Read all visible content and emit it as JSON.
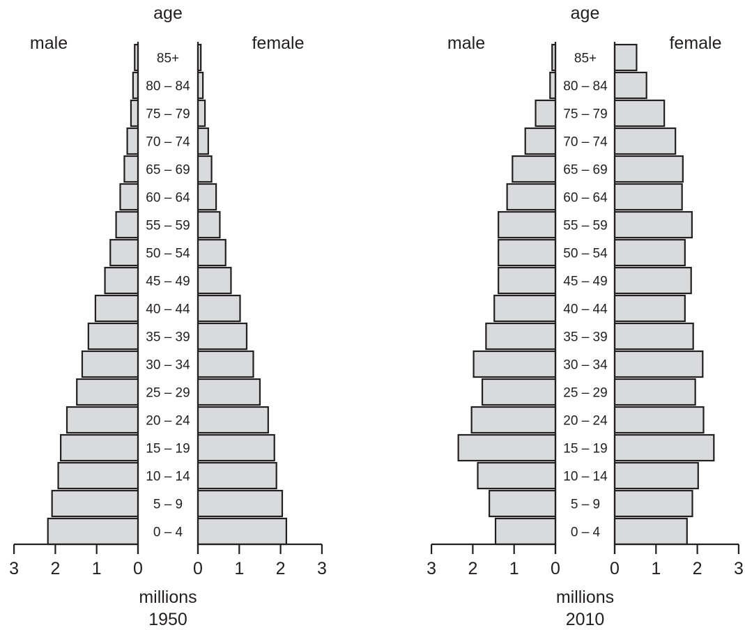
{
  "chart_data": [
    {
      "type": "bar",
      "title": "1950",
      "xlabel": "millions",
      "ylabel": "age",
      "left_label": "male",
      "right_label": "female",
      "xlim": [
        0,
        3
      ],
      "ticks": [
        "3",
        "2",
        "1",
        "0",
        "0",
        "1",
        "2",
        "3"
      ],
      "categories": [
        "0 – 4",
        "5 – 9",
        "10 – 14",
        "15 – 19",
        "20 – 24",
        "25 – 29",
        "30 – 34",
        "35 – 39",
        "40 – 44",
        "45 – 49",
        "50 – 54",
        "55 – 59",
        "60 – 64",
        "65 – 69",
        "70 – 74",
        "75 – 79",
        "80 – 84",
        "85+"
      ],
      "series": [
        {
          "name": "male",
          "values": [
            2.18,
            2.08,
            1.93,
            1.87,
            1.72,
            1.48,
            1.35,
            1.2,
            1.03,
            0.8,
            0.67,
            0.53,
            0.43,
            0.33,
            0.26,
            0.17,
            0.12,
            0.08
          ]
        },
        {
          "name": "female",
          "values": [
            2.14,
            2.04,
            1.9,
            1.85,
            1.7,
            1.5,
            1.34,
            1.18,
            1.02,
            0.8,
            0.67,
            0.53,
            0.44,
            0.33,
            0.25,
            0.17,
            0.12,
            0.07
          ]
        }
      ]
    },
    {
      "type": "bar",
      "title": "2010",
      "xlabel": "millions",
      "ylabel": "age",
      "left_label": "male",
      "right_label": "female",
      "xlim": [
        0,
        3
      ],
      "ticks": [
        "3",
        "2",
        "1",
        "0",
        "0",
        "1",
        "2",
        "3"
      ],
      "categories": [
        "0 – 4",
        "5 – 9",
        "10 – 14",
        "15 – 19",
        "20 – 24",
        "25 – 29",
        "30 – 34",
        "35 – 39",
        "40 – 44",
        "45 – 49",
        "50 – 54",
        "55 – 59",
        "60 – 64",
        "65 – 69",
        "70 – 74",
        "75 – 79",
        "80 – 84",
        "85+"
      ],
      "series": [
        {
          "name": "male",
          "values": [
            1.45,
            1.6,
            1.88,
            2.35,
            2.03,
            1.77,
            1.98,
            1.68,
            1.48,
            1.38,
            1.38,
            1.38,
            1.17,
            1.04,
            0.73,
            0.48,
            0.13,
            0.08
          ]
        },
        {
          "name": "female",
          "values": [
            1.75,
            1.88,
            2.02,
            2.4,
            2.15,
            1.95,
            2.13,
            1.9,
            1.7,
            1.85,
            1.7,
            1.87,
            1.63,
            1.65,
            1.47,
            1.2,
            0.77,
            0.53
          ]
        }
      ]
    }
  ]
}
